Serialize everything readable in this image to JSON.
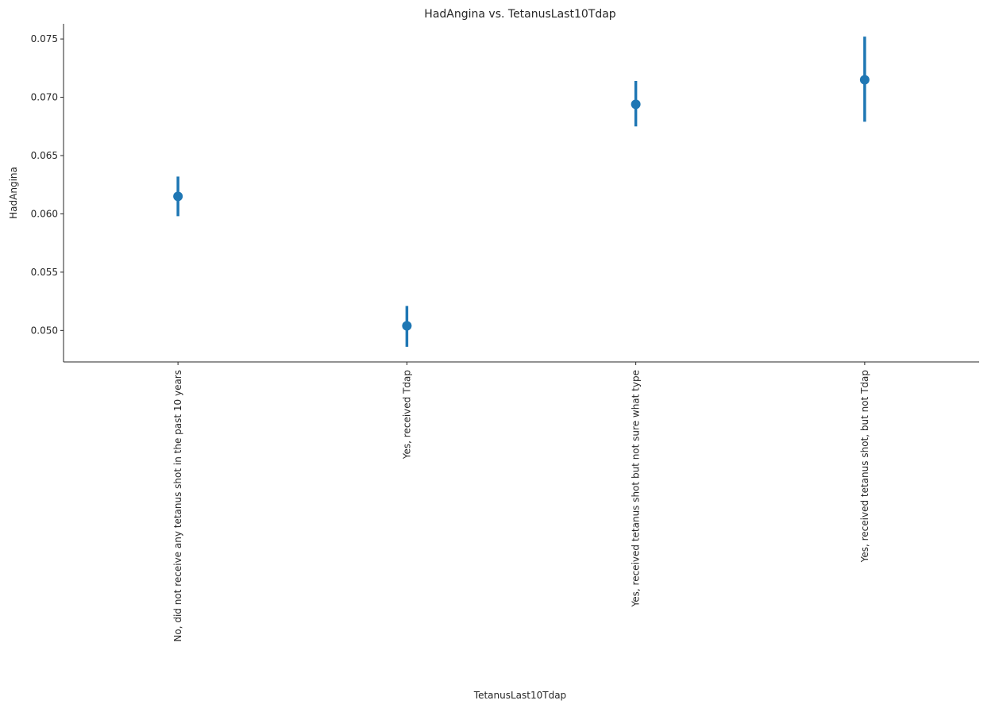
{
  "chart_data": {
    "type": "scatter",
    "subtype": "pointplot-with-error-bars",
    "title": "HadAngina vs. TetanusLast10Tdap",
    "xlabel": "TetanusLast10Tdap",
    "ylabel": "HadAngina",
    "categories": [
      "No, did not receive any tetanus shot in the past 10 years",
      "Yes, received Tdap",
      "Yes, received tetanus shot but not sure what type",
      "Yes, received tetanus shot, but not Tdap"
    ],
    "values": [
      0.0615,
      0.0504,
      0.0694,
      0.0715
    ],
    "ci_lower": [
      0.0598,
      0.0486,
      0.0675,
      0.0679
    ],
    "ci_upper": [
      0.0632,
      0.0521,
      0.0714,
      0.0752
    ],
    "ylim": [
      0.0473,
      0.0763
    ],
    "yticks": [
      0.05,
      0.055,
      0.06,
      0.065,
      0.07,
      0.075
    ],
    "ytick_labels": [
      "0.050",
      "0.055",
      "0.060",
      "0.065",
      "0.070",
      "0.075"
    ],
    "grid": false,
    "color": "#1f77b4"
  }
}
